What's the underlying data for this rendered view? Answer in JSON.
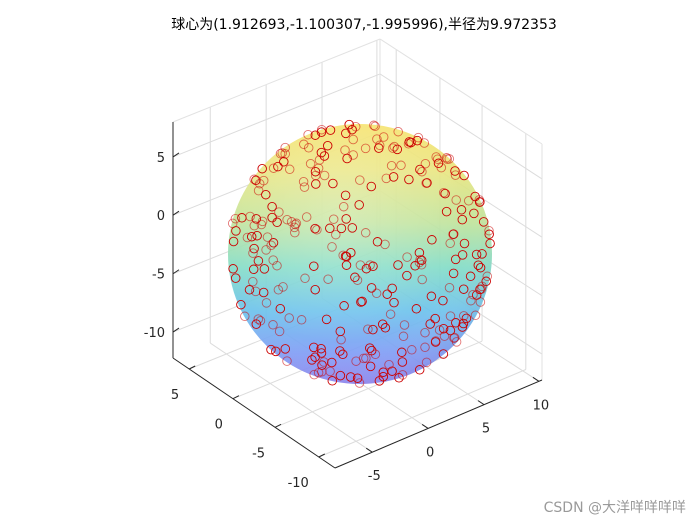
{
  "chart_data": {
    "type": "scatter",
    "title": "球心为(1.912693,-1.100307,-1.995996),半径为9.972353",
    "sphere": {
      "center": [
        1.912693,
        -1.100307,
        -1.995996
      ],
      "radius": 9.972353
    },
    "x_ticks": [
      "-5",
      "0",
      "5",
      "10"
    ],
    "y_ticks": [
      "5",
      "0",
      "-5",
      "-10"
    ],
    "z_ticks": [
      "5",
      "0",
      "-5",
      "-10"
    ],
    "xlim": [
      -8,
      13
    ],
    "ylim": [
      -13,
      9
    ],
    "zlim": [
      -13,
      8
    ],
    "grid": true,
    "marker": "circle",
    "marker_color": "#cc0000",
    "sphere_colormap": "parula",
    "sphere_alpha": 0.5,
    "point_count": 300
  },
  "watermark": "CSDN @大洋咩咩咩咩"
}
